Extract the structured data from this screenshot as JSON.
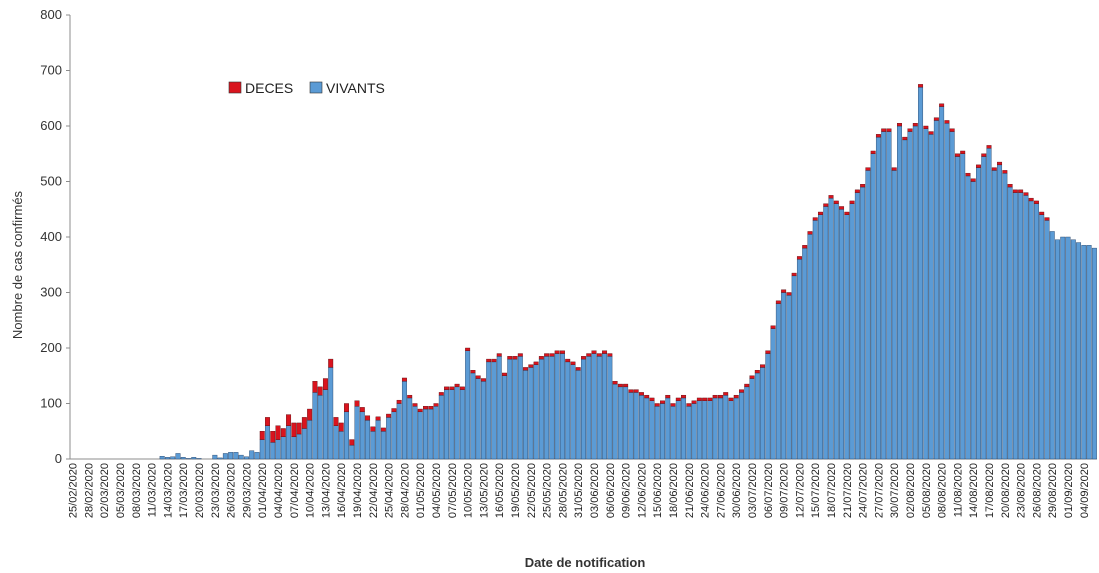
{
  "chart_data": {
    "type": "bar",
    "stacked": true,
    "title": "",
    "xlabel": "Date de notification",
    "ylabel": "Nombre de cas confirmés",
    "ylim": [
      0,
      800
    ],
    "yticks": [
      0,
      100,
      200,
      300,
      400,
      500,
      600,
      700,
      800
    ],
    "grid": false,
    "legend_position": "top-left",
    "start_date": "25/02/2020",
    "label_step": 3,
    "series": [
      {
        "name": "DECES",
        "color": "#d9141e",
        "values": [
          0,
          0,
          0,
          0,
          0,
          0,
          0,
          0,
          0,
          0,
          0,
          0,
          0,
          0,
          0,
          0,
          0,
          0,
          0,
          0,
          0,
          0,
          0,
          0,
          0,
          0,
          0,
          0,
          0,
          0,
          0,
          0,
          0,
          0,
          0,
          0,
          15,
          15,
          20,
          25,
          15,
          20,
          25,
          20,
          20,
          20,
          20,
          15,
          20,
          15,
          15,
          15,
          15,
          10,
          10,
          8,
          8,
          8,
          6,
          6,
          6,
          6,
          6,
          6,
          5,
          5,
          5,
          5,
          5,
          5,
          5,
          5,
          5,
          5,
          5,
          5,
          5,
          5,
          5,
          5,
          5,
          5,
          5,
          5,
          5,
          5,
          5,
          5,
          5,
          5,
          5,
          5,
          5,
          5,
          5,
          5,
          5,
          5,
          5,
          5,
          5,
          5,
          5,
          5,
          5,
          5,
          5,
          5,
          5,
          5,
          5,
          5,
          5,
          5,
          5,
          5,
          5,
          5,
          5,
          5,
          5,
          5,
          5,
          5,
          5,
          5,
          5,
          5,
          5,
          5,
          5,
          5,
          5,
          5,
          5,
          5,
          5,
          5,
          5,
          5,
          5,
          5,
          5,
          5,
          5,
          5,
          5,
          5,
          5,
          5,
          5,
          5,
          5,
          5,
          5,
          5,
          5,
          5,
          5,
          5,
          5,
          5,
          5,
          5,
          5,
          5,
          5,
          5,
          5,
          5,
          5,
          5,
          5,
          5,
          5,
          5,
          5,
          5,
          5,
          5,
          5,
          5,
          5,
          5,
          5,
          5
        ]
      },
      {
        "name": "VIVANTS",
        "color": "#5b9bd5",
        "values": [
          0,
          0,
          0,
          0,
          0,
          0,
          0,
          0,
          0,
          0,
          0,
          0,
          0,
          0,
          0,
          0,
          0,
          5,
          3,
          4,
          10,
          3,
          1,
          3,
          1,
          0,
          0,
          7,
          2,
          10,
          12,
          12,
          7,
          4,
          15,
          12,
          35,
          60,
          30,
          35,
          40,
          60,
          40,
          45,
          55,
          70,
          120,
          115,
          125,
          165,
          60,
          50,
          85,
          25,
          95,
          85,
          70,
          50,
          70,
          50,
          75,
          85,
          100,
          140,
          110,
          95,
          85,
          90,
          90,
          95,
          115,
          125,
          125,
          130,
          125,
          195,
          155,
          145,
          140,
          175,
          175,
          185,
          150,
          180,
          180,
          185,
          160,
          165,
          170,
          180,
          185,
          185,
          190,
          190,
          175,
          170,
          160,
          180,
          185,
          190,
          185,
          190,
          185,
          135,
          130,
          130,
          120,
          120,
          115,
          110,
          105,
          95,
          100,
          110,
          95,
          105,
          110,
          95,
          100,
          105,
          105,
          105,
          110,
          110,
          115,
          105,
          110,
          120,
          130,
          145,
          155,
          165,
          190,
          235,
          280,
          300,
          295,
          330,
          360,
          380,
          405,
          430,
          440,
          455,
          470,
          460,
          450,
          440,
          460,
          480,
          490,
          520,
          550,
          580,
          590,
          590,
          520,
          600,
          575,
          590,
          600,
          670,
          595,
          585,
          610,
          635,
          605,
          590,
          545,
          550,
          510,
          500,
          525,
          545,
          560,
          520,
          530,
          515,
          490,
          480,
          480,
          475,
          465,
          460,
          440,
          430,
          410,
          395,
          400,
          400,
          395,
          390,
          385,
          385,
          380
        ]
      }
    ]
  }
}
